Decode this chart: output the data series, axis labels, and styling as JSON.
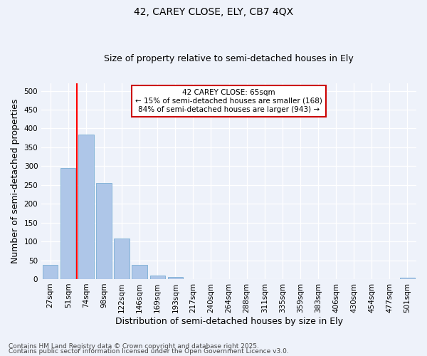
{
  "title1": "42, CAREY CLOSE, ELY, CB7 4QX",
  "title2": "Size of property relative to semi-detached houses in Ely",
  "xlabel": "Distribution of semi-detached houses by size in Ely",
  "ylabel": "Number of semi-detached properties",
  "annotation_line1": "42 CAREY CLOSE: 65sqm",
  "annotation_line2": "← 15% of semi-detached houses are smaller (168)",
  "annotation_line3": "84% of semi-detached houses are larger (943) →",
  "footer1": "Contains HM Land Registry data © Crown copyright and database right 2025.",
  "footer2": "Contains public sector information licensed under the Open Government Licence v3.0.",
  "bar_labels": [
    "27sqm",
    "51sqm",
    "74sqm",
    "98sqm",
    "122sqm",
    "146sqm",
    "169sqm",
    "193sqm",
    "217sqm",
    "240sqm",
    "264sqm",
    "288sqm",
    "311sqm",
    "335sqm",
    "359sqm",
    "383sqm",
    "406sqm",
    "430sqm",
    "454sqm",
    "477sqm",
    "501sqm"
  ],
  "bar_values": [
    37,
    295,
    383,
    255,
    107,
    37,
    10,
    6,
    0,
    0,
    0,
    0,
    0,
    0,
    0,
    0,
    0,
    0,
    0,
    0,
    4
  ],
  "bar_color": "#aec6e8",
  "bar_edge_color": "#7aaed4",
  "redline_x": 1.5,
  "ylim": [
    0,
    520
  ],
  "yticks": [
    0,
    50,
    100,
    150,
    200,
    250,
    300,
    350,
    400,
    450,
    500
  ],
  "background_color": "#eef2fa",
  "grid_color": "#ffffff",
  "annotation_box_facecolor": "#ffffff",
  "annotation_box_edgecolor": "#cc0000",
  "title1_fontsize": 10,
  "title2_fontsize": 9,
  "axis_label_fontsize": 9,
  "tick_fontsize": 7.5,
  "annotation_fontsize": 7.5,
  "footer_fontsize": 6.5
}
